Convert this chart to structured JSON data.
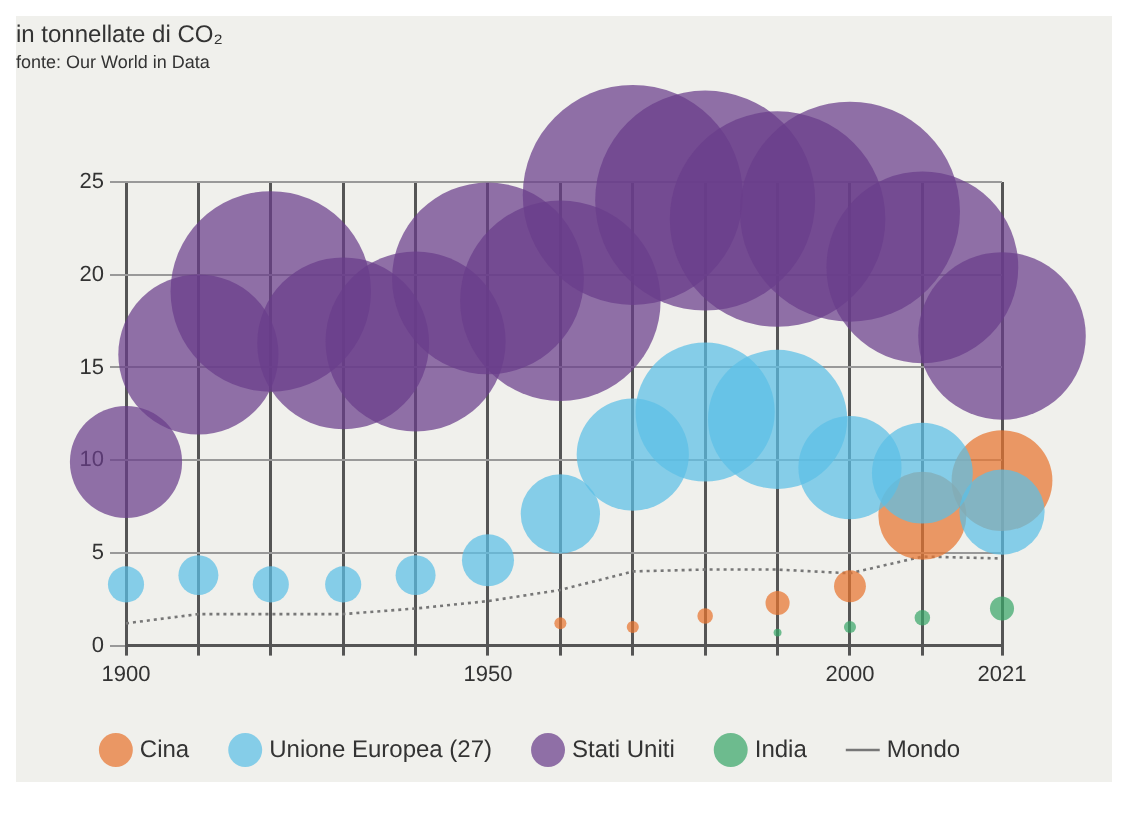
{
  "chart_data": {
    "type": "bubble",
    "subtitle": "in tonnellate di CO₂",
    "annotations": [
      "fonte: Our World in Data"
    ],
    "xlim": [
      1900,
      2021
    ],
    "xticks": [
      1900,
      {
        "value": 1910,
        "label": null
      },
      {
        "value": 1920,
        "label": null
      },
      {
        "value": 1930,
        "label": null
      },
      {
        "value": 1940,
        "label": null
      },
      1950,
      {
        "value": 1960,
        "label": null
      },
      {
        "value": 1970,
        "label": null
      },
      {
        "value": 1980,
        "label": null
      },
      {
        "value": 1990,
        "label": null
      },
      2000,
      {
        "value": 2010,
        "label": null
      },
      2021
    ],
    "ylim": [
      0,
      25
    ],
    "yticks": [
      0,
      5,
      10,
      15,
      20,
      25
    ],
    "grid": true,
    "legend": "bottom",
    "series": [
      {
        "name": "Cina",
        "color": "#e8742f",
        "x": [
          1960,
          1970,
          1980,
          1990,
          2000,
          2010,
          2021
        ],
        "values": [
          1.2,
          1.0,
          1.6,
          2.3,
          3.2,
          7.0,
          8.9
        ],
        "sizes": [
          0.003,
          0.003,
          0.005,
          0.012,
          0.021,
          0.16,
          0.21
        ]
      },
      {
        "name": "Unione Europea (27)",
        "color": "#5bbfe6",
        "x": [
          1900,
          1910,
          1920,
          1930,
          1940,
          1950,
          1960,
          1970,
          1980,
          1990,
          2000,
          2010,
          2021
        ],
        "values": [
          3.3,
          3.8,
          3.3,
          3.3,
          3.8,
          4.6,
          7.1,
          10.3,
          12.6,
          12.2,
          9.6,
          9.3,
          7.2
        ],
        "sizes": [
          0.027,
          0.033,
          0.027,
          0.027,
          0.033,
          0.056,
          0.13,
          0.26,
          0.4,
          0.4,
          0.22,
          0.21,
          0.15
        ]
      },
      {
        "name": "Stati Uniti",
        "color": "#6a3d8a",
        "x": [
          1900,
          1910,
          1920,
          1930,
          1940,
          1950,
          1960,
          1970,
          1980,
          1990,
          2000,
          2010,
          2021
        ],
        "values": [
          9.9,
          15.7,
          19.1,
          16.3,
          16.4,
          19.8,
          18.6,
          24.3,
          24.0,
          23.0,
          23.4,
          20.4,
          16.7
        ],
        "sizes": [
          0.26,
          0.53,
          0.83,
          0.61,
          0.67,
          0.76,
          0.83,
          1,
          1,
          0.96,
          1,
          0.76,
          0.58
        ]
      },
      {
        "name": "India",
        "color": "#3aa66a",
        "x": [
          1990,
          2000,
          2010,
          2021
        ],
        "values": [
          0.7,
          1.0,
          1.5,
          2.0
        ],
        "sizes": [
          0.0013,
          0.003,
          0.005,
          0.012
        ]
      },
      {
        "name": "Mondo",
        "type": "line",
        "color": "#777777",
        "line_style": "dotted",
        "marker": "none",
        "x": [
          1900,
          1910,
          1920,
          1930,
          1940,
          1950,
          1960,
          1970,
          1980,
          1990,
          2000,
          2010,
          2021
        ],
        "values": [
          1.2,
          1.7,
          1.7,
          1.7,
          2.0,
          2.4,
          3.0,
          4.0,
          4.1,
          4.1,
          3.9,
          4.8,
          4.7
        ]
      }
    ]
  }
}
